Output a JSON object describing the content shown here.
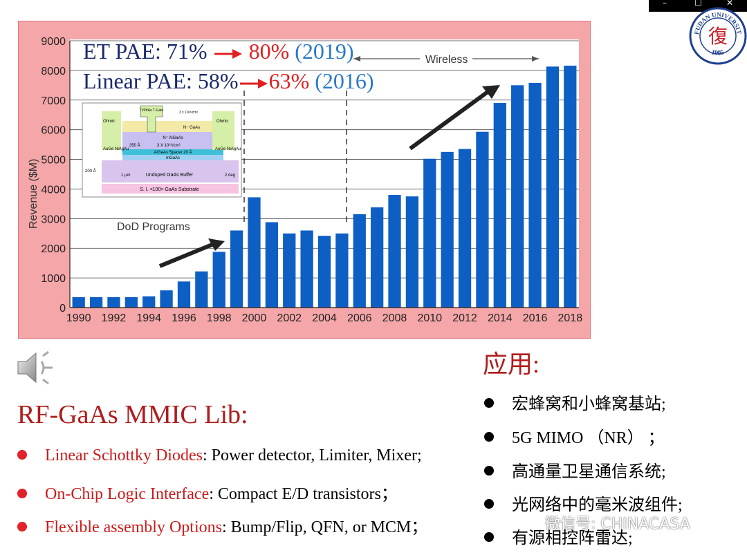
{
  "window_controls": {
    "minimize": "–",
    "maximize": "☐",
    "close": "✕"
  },
  "logo": {
    "text": "FUDAN UNIVERSITY",
    "year": "1905",
    "char": "復",
    "color": "#1f3f8f"
  },
  "chart_overlay": {
    "et_label": "ET PAE: 71%",
    "et_new": "80%",
    "et_year": "(2019)",
    "lin_label": "Linear PAE: 58%",
    "lin_new": "63%",
    "lin_year": "(2016)",
    "wireless": "Wireless",
    "dod": "DoD Programs",
    "colors": {
      "navy": "#1a2a6c",
      "red": "#e02020",
      "blue": "#2a7ac8"
    }
  },
  "inset": {
    "gate": "TI/Pt/Au T-Gate",
    "doping_top": "3 x 10¹⁸/cm³",
    "ohmic": "Ohmic",
    "n_gaas": "N⁺ GaAs",
    "n_algaas": "N⁺ AlGaAs",
    "thick": "350 Å",
    "doping_mid": "3 X 10¹⁸/cm³",
    "contact": "AuGe NiAgAu",
    "spacer": "AlGaAs Spacer 20 Å",
    "ingaas": "InGaAs",
    "a200": "200 Å",
    "um1": "1 µm",
    "buffer": "Undoped GaAs Buffer",
    "deg": "2 deg",
    "substrate": "S. I. <100> GaAs Substrate"
  },
  "chart_data": {
    "type": "bar",
    "ylabel": "Revenue ($M)",
    "ylim": [
      0,
      9000
    ],
    "yticks": [
      0,
      1000,
      2000,
      3000,
      4000,
      5000,
      6000,
      7000,
      8000,
      9000
    ],
    "xtick_labels": [
      "1990",
      "1992",
      "1994",
      "1996",
      "1998",
      "2000",
      "2002",
      "2004",
      "2006",
      "2008",
      "2010",
      "2012",
      "2014",
      "2016",
      "2018"
    ],
    "categories": [
      "1990",
      "1991",
      "1992",
      "1993",
      "1994",
      "1995",
      "1996",
      "1997",
      "1998",
      "1999",
      "2000",
      "2001",
      "2002",
      "2003",
      "2004",
      "2005",
      "2006",
      "2007",
      "2008",
      "2009",
      "2010",
      "2011",
      "2012",
      "2013",
      "2014",
      "2015",
      "2016",
      "2017",
      "2018"
    ],
    "values": [
      350,
      350,
      350,
      350,
      380,
      580,
      880,
      1220,
      1880,
      2600,
      3720,
      2880,
      2500,
      2600,
      2420,
      2500,
      3150,
      3380,
      3800,
      3750,
      5020,
      5250,
      5350,
      5930,
      6900,
      7500,
      7580,
      8130,
      8160
    ],
    "bar_color": "#0d5fc4",
    "grid": true
  },
  "speaker": {
    "icon": "speaker-icon"
  },
  "lib": {
    "title": "RF-GaAs MMIC Lib:",
    "items": [
      {
        "hl": "Linear Schottky Diodes",
        "rest": ": Power detector, Limiter, Mixer;"
      },
      {
        "hl": "On-Chip Logic Interface",
        "rest": ": Compact E/D transistors；"
      },
      {
        "hl": "Flexible assembly Options",
        "rest": ": Bump/Flip, QFN, or MCM；"
      }
    ]
  },
  "apps": {
    "title": "应用:",
    "items": [
      "宏蜂窝和小蜂窝基站;",
      "5G MIMO （NR） ；",
      "高通量卫星通信系统;",
      "光网络中的毫米波组件;",
      "有源相控阵雷达;"
    ]
  },
  "watermark": "微信号: CHINACASA"
}
